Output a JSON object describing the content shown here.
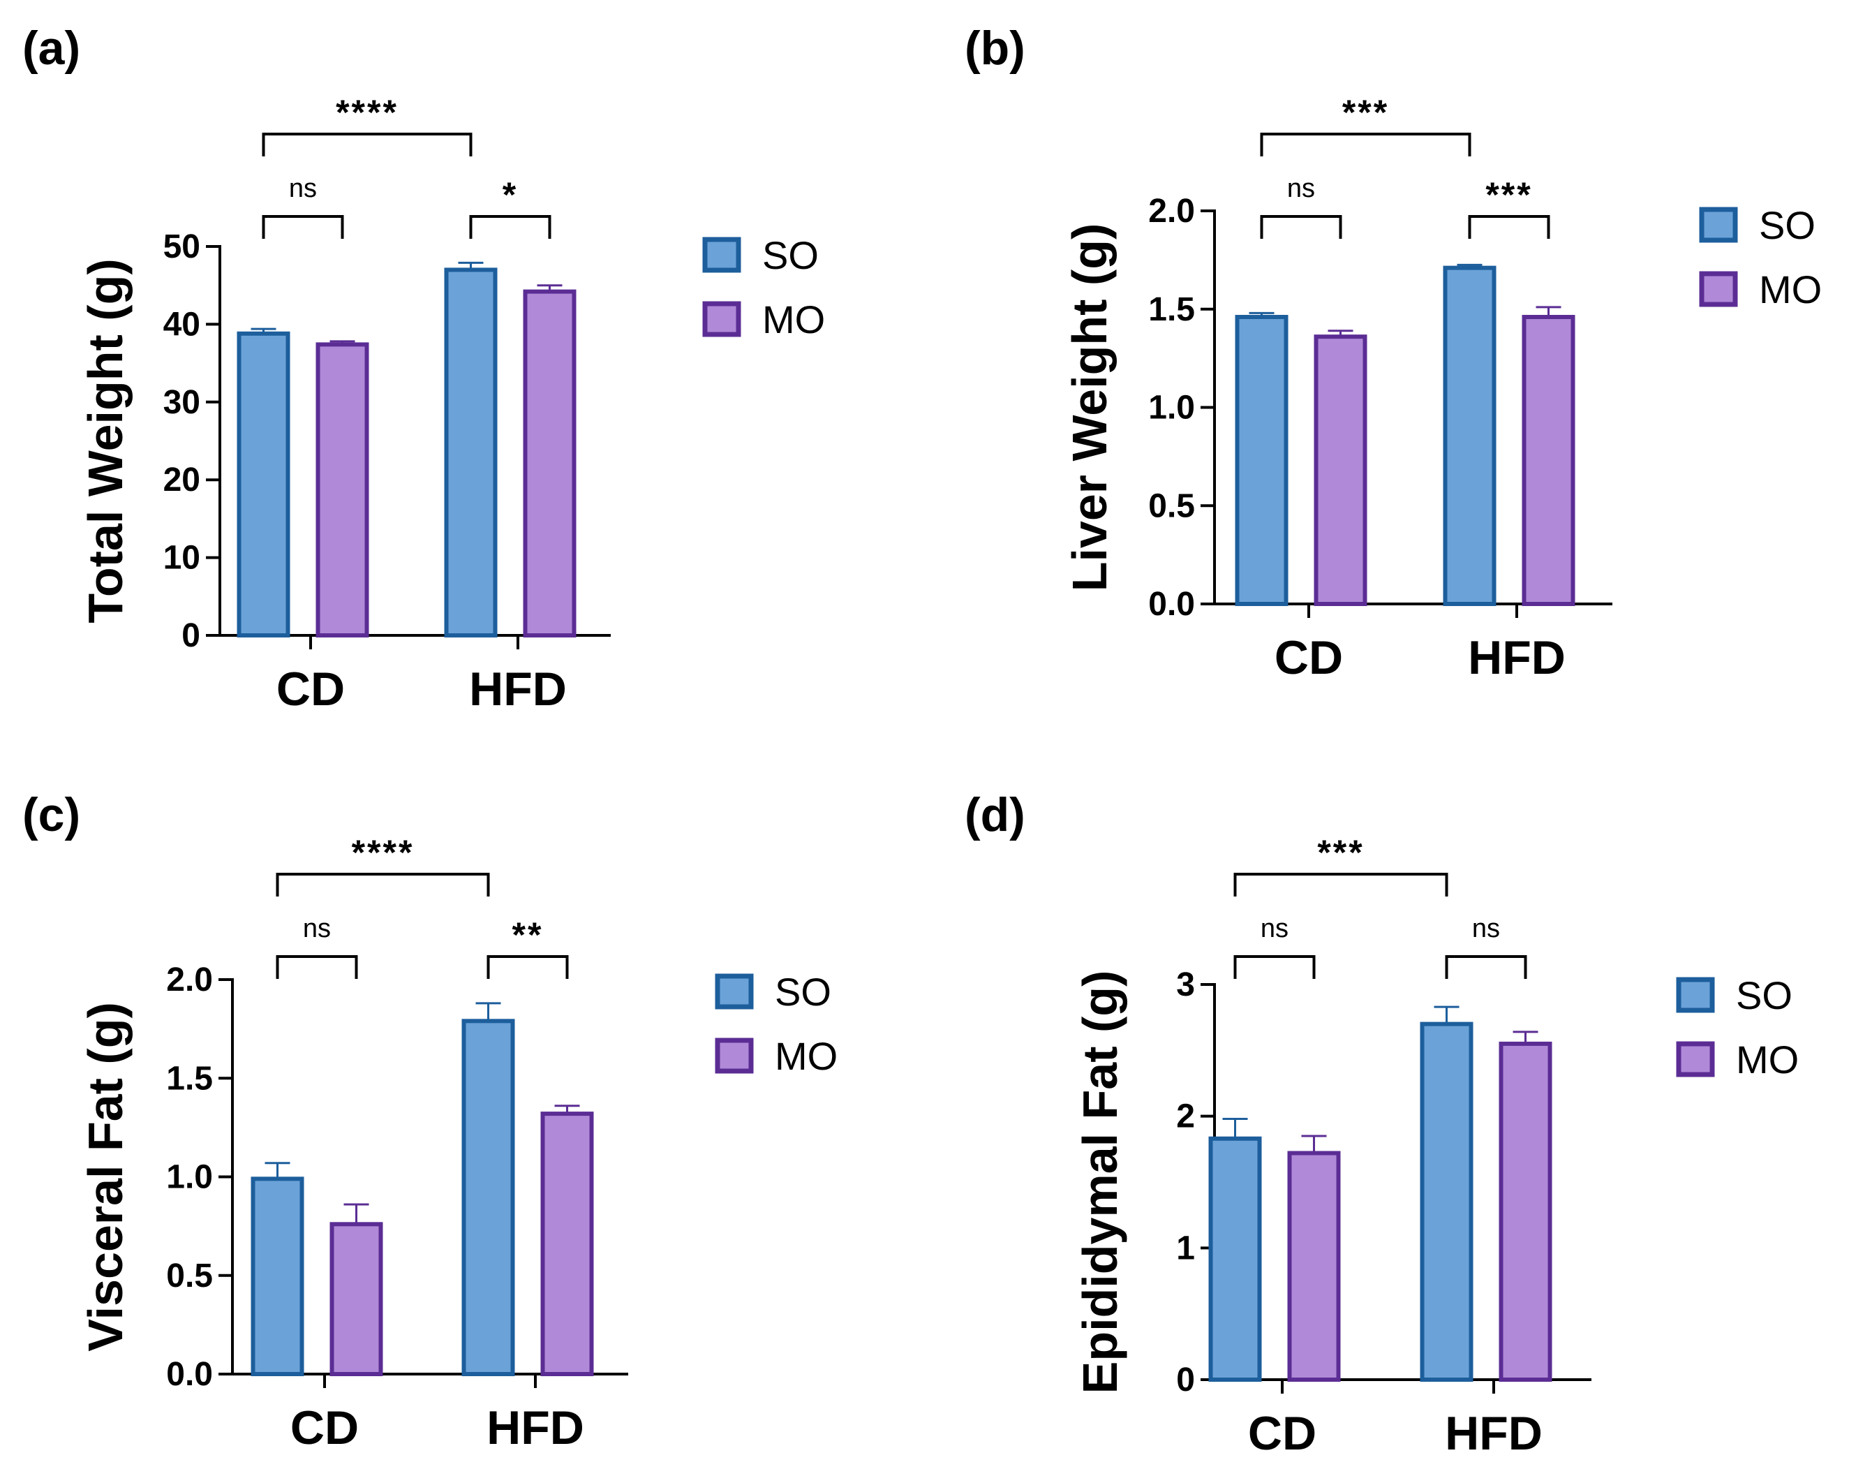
{
  "figure": {
    "colors": {
      "SO_fill": "#6ba3d8",
      "SO_edge": "#1d5e9c",
      "MO_fill": "#b08ad8",
      "MO_edge": "#5b2d94"
    }
  },
  "chart_data": [
    {
      "panel": "(a)",
      "type": "bar",
      "ylabel": "Total Weight (g)",
      "categories": [
        "CD",
        "HFD"
      ],
      "ylim": [
        0,
        50
      ],
      "yticks": [
        0,
        10,
        20,
        30,
        40,
        50
      ],
      "ytick_labels": [
        "0",
        "10",
        "20",
        "30",
        "40",
        "50"
      ],
      "series": [
        {
          "name": "SO",
          "values": [
            38.8,
            47.0
          ],
          "errors": [
            0.6,
            0.9
          ]
        },
        {
          "name": "MO",
          "values": [
            37.4,
            44.2
          ],
          "errors": [
            0.4,
            0.8
          ]
        }
      ],
      "legend": [
        "SO",
        "MO"
      ],
      "legend_position": "right",
      "significance": [
        {
          "label": "****",
          "level": 0,
          "from": "CD-SO",
          "to": "HFD-SO"
        },
        {
          "label": "ns",
          "level": 1,
          "from": "CD-SO",
          "to": "CD-MO"
        },
        {
          "label": "*",
          "level": 1,
          "from": "HFD-SO",
          "to": "HFD-MO"
        }
      ]
    },
    {
      "panel": "(b)",
      "type": "bar",
      "ylabel": "Liver Weight (g)",
      "categories": [
        "CD",
        "HFD"
      ],
      "ylim": [
        0,
        2.0
      ],
      "yticks": [
        0,
        0.5,
        1.0,
        1.5,
        2.0
      ],
      "ytick_labels": [
        "0.0",
        "0.5",
        "1.0",
        "1.5",
        "2.0"
      ],
      "series": [
        {
          "name": "SO",
          "values": [
            1.46,
            1.71
          ],
          "errors": [
            0.02,
            0.015
          ]
        },
        {
          "name": "MO",
          "values": [
            1.36,
            1.46
          ],
          "errors": [
            0.03,
            0.05
          ]
        }
      ],
      "legend": [
        "SO",
        "MO"
      ],
      "legend_position": "right",
      "significance": [
        {
          "label": "***",
          "level": 0,
          "from": "CD-SO",
          "to": "HFD-SO"
        },
        {
          "label": "ns",
          "level": 1,
          "from": "CD-SO",
          "to": "CD-MO"
        },
        {
          "label": "***",
          "level": 1,
          "from": "HFD-SO",
          "to": "HFD-MO"
        }
      ]
    },
    {
      "panel": "(c)",
      "type": "bar",
      "ylabel": "Visceral Fat (g)",
      "categories": [
        "CD",
        "HFD"
      ],
      "ylim": [
        0,
        2.0
      ],
      "yticks": [
        0,
        0.5,
        1.0,
        1.5,
        2.0
      ],
      "ytick_labels": [
        "0.0",
        "0.5",
        "1.0",
        "1.5",
        "2.0"
      ],
      "series": [
        {
          "name": "SO",
          "values": [
            0.99,
            1.79
          ],
          "errors": [
            0.08,
            0.09
          ]
        },
        {
          "name": "MO",
          "values": [
            0.76,
            1.32
          ],
          "errors": [
            0.1,
            0.04
          ]
        }
      ],
      "legend": [
        "SO",
        "MO"
      ],
      "legend_position": "right",
      "significance": [
        {
          "label": "****",
          "level": 0,
          "from": "CD-SO",
          "to": "HFD-SO"
        },
        {
          "label": "ns",
          "level": 1,
          "from": "CD-SO",
          "to": "CD-MO"
        },
        {
          "label": "**",
          "level": 1,
          "from": "HFD-SO",
          "to": "HFD-MO"
        }
      ]
    },
    {
      "panel": "(d)",
      "type": "bar",
      "ylabel": "Epididymal Fat (g)",
      "categories": [
        "CD",
        "HFD"
      ],
      "ylim": [
        0,
        3
      ],
      "yticks": [
        0,
        1,
        2,
        3
      ],
      "ytick_labels": [
        "0",
        "1",
        "2",
        "3"
      ],
      "series": [
        {
          "name": "SO",
          "values": [
            1.83,
            2.7
          ],
          "errors": [
            0.15,
            0.13
          ]
        },
        {
          "name": "MO",
          "values": [
            1.72,
            2.55
          ],
          "errors": [
            0.13,
            0.09
          ]
        }
      ],
      "legend": [
        "SO",
        "MO"
      ],
      "legend_position": "right",
      "significance": [
        {
          "label": "***",
          "level": 0,
          "from": "CD-SO",
          "to": "HFD-SO"
        },
        {
          "label": "ns",
          "level": 1,
          "from": "CD-SO",
          "to": "CD-MO"
        },
        {
          "label": "ns",
          "level": 1,
          "from": "HFD-SO",
          "to": "HFD-MO"
        }
      ]
    }
  ]
}
